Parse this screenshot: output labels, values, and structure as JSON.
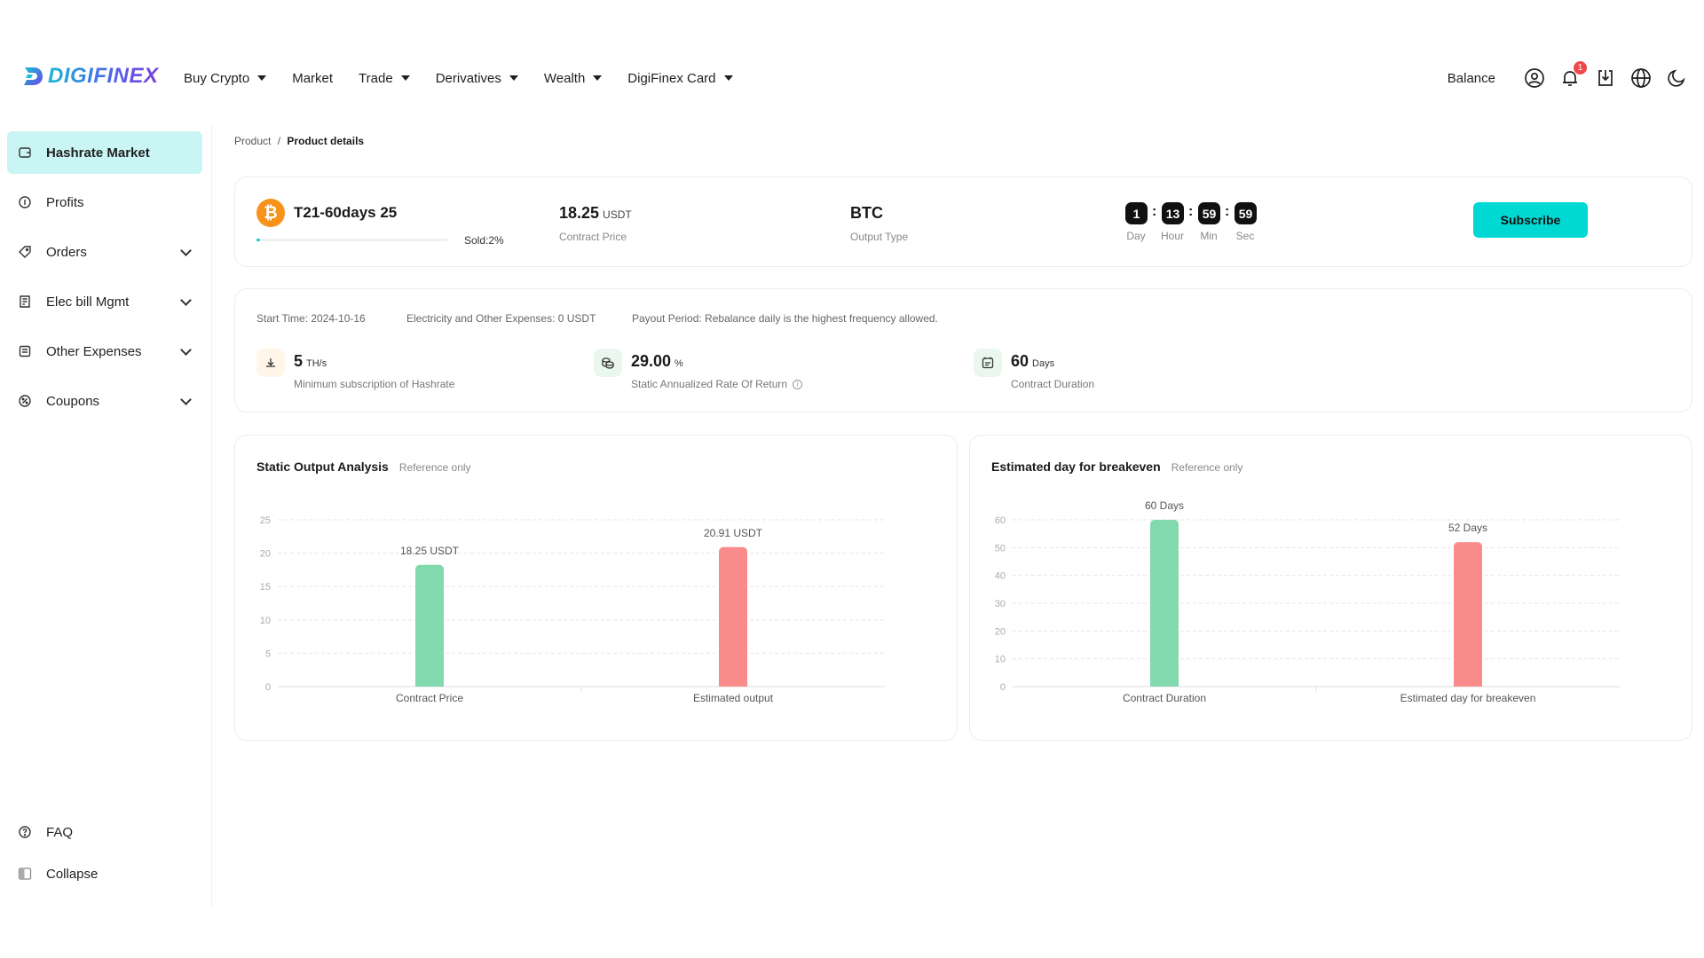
{
  "header": {
    "logo_text": "DIGIFINEX",
    "nav": [
      {
        "label": "Buy Crypto",
        "dropdown": true
      },
      {
        "label": "Market",
        "dropdown": false
      },
      {
        "label": "Trade",
        "dropdown": true
      },
      {
        "label": "Derivatives",
        "dropdown": true
      },
      {
        "label": "Wealth",
        "dropdown": true
      },
      {
        "label": "DigiFinex Card",
        "dropdown": true
      }
    ],
    "balance_label": "Balance",
    "notification_count": "1",
    "icons": [
      "user-icon",
      "bell-icon",
      "download-icon",
      "globe-icon",
      "moon-icon"
    ]
  },
  "sidebar": {
    "items": [
      {
        "label": "Hashrate Market",
        "icon": "wallet-icon",
        "active": true,
        "expandable": false
      },
      {
        "label": "Profits",
        "icon": "coin-icon",
        "active": false,
        "expandable": false
      },
      {
        "label": "Orders",
        "icon": "tag-icon",
        "active": false,
        "expandable": true
      },
      {
        "label": "Elec bill Mgmt",
        "icon": "bill-icon",
        "active": false,
        "expandable": true
      },
      {
        "label": "Other Expenses",
        "icon": "list-icon",
        "active": false,
        "expandable": true
      },
      {
        "label": "Coupons",
        "icon": "coupon-icon",
        "active": false,
        "expandable": true
      }
    ],
    "faq_label": "FAQ",
    "collapse_label": "Collapse"
  },
  "breadcrumb": {
    "parent": "Product",
    "separator": "/",
    "current": "Product details"
  },
  "product": {
    "name": "T21-60days 25",
    "icon": "bitcoin-icon",
    "sold_label": "Sold:2%",
    "sold_fraction": 0.02,
    "contract_price": "18.25",
    "contract_price_unit": "USDT",
    "contract_price_label": "Contract Price",
    "output_type": "BTC",
    "output_type_label": "Output Type",
    "countdown": [
      {
        "value": "1",
        "label": "Day"
      },
      {
        "value": "13",
        "label": "Hour"
      },
      {
        "value": "59",
        "label": "Min"
      },
      {
        "value": "59",
        "label": "Sec"
      }
    ],
    "subscribe_label": "Subscribe"
  },
  "details": {
    "start_time": "Start Time:  2024-10-16",
    "electricity": "Electricity and Other Expenses:  0 USDT",
    "payout": "Payout Period:  Rebalance daily is the highest frequency allowed.",
    "stats": [
      {
        "value": "5",
        "unit": "TH/s",
        "label": "Minimum subscription of Hashrate",
        "icon": "hashrate-icon",
        "info": false
      },
      {
        "value": "29.00",
        "unit": "%",
        "label": "Static Annualized Rate Of Return",
        "icon": "coins-icon",
        "info": true
      },
      {
        "value": "60",
        "unit": "Days",
        "label": "Contract Duration",
        "icon": "calendar-icon",
        "info": false
      }
    ]
  },
  "charts": {
    "reference_label": "Reference only",
    "output_title": "Static Output Analysis",
    "breakeven_title": "Estimated day for breakeven"
  },
  "chart_data": [
    {
      "type": "bar",
      "title": "Static Output Analysis",
      "categories": [
        "Contract Price",
        "Estimated output"
      ],
      "values": [
        18.25,
        20.91
      ],
      "data_labels": [
        "18.25 USDT",
        "20.91 USDT"
      ],
      "colors": [
        "#82d9ae",
        "#f98b8b"
      ],
      "ylim": [
        0,
        25
      ],
      "yticks": [
        0,
        5,
        10,
        15,
        20,
        25
      ],
      "grid": true
    },
    {
      "type": "bar",
      "title": "Estimated day for breakeven",
      "categories": [
        "Contract Duration",
        "Estimated day for breakeven"
      ],
      "values": [
        60,
        52
      ],
      "data_labels": [
        "60 Days",
        "52 Days"
      ],
      "colors": [
        "#82d9ae",
        "#f98b8b"
      ],
      "ylim": [
        0,
        60
      ],
      "yticks": [
        0,
        10,
        20,
        30,
        40,
        50,
        60
      ],
      "grid": true
    }
  ]
}
